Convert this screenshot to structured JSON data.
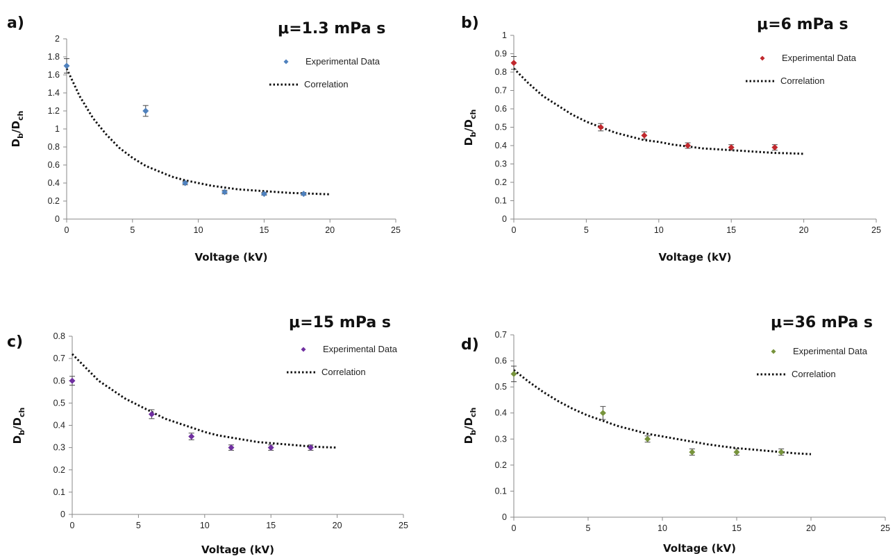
{
  "chart_data": [
    {
      "type": "scatter",
      "panel": "a)",
      "title": "μ=1.3 mPa s",
      "xlabel": "Voltage (kV)",
      "ylabel_main": "D",
      "ylabel_sub1": "b",
      "ylabel_mid": "/D",
      "ylabel_sub2": "ch",
      "xlim": [
        0,
        25
      ],
      "ylim": [
        0,
        2
      ],
      "xticks": [
        "0",
        "5",
        "10",
        "15",
        "20",
        "25"
      ],
      "yticks": [
        "0",
        "0.2",
        "0.4",
        "0.6",
        "0.8",
        "1",
        "1.2",
        "1.4",
        "1.6",
        "1.8",
        "2"
      ],
      "color": "#4f81bd",
      "series": [
        {
          "name": "Experimental Data",
          "x": [
            0,
            6,
            9,
            12,
            15,
            18
          ],
          "y": [
            1.7,
            1.2,
            0.4,
            0.3,
            0.28,
            0.28
          ],
          "error": [
            0.08,
            0.06,
            0.02,
            0.02,
            0.015,
            0.015
          ]
        },
        {
          "name": "Correlation",
          "x": [
            0,
            1,
            2,
            3,
            4,
            5,
            6,
            7,
            8,
            9,
            10,
            11,
            12,
            13,
            14,
            15,
            16,
            17,
            18,
            19,
            20
          ],
          "y": [
            1.67,
            1.36,
            1.12,
            0.94,
            0.79,
            0.68,
            0.59,
            0.53,
            0.47,
            0.43,
            0.4,
            0.37,
            0.35,
            0.33,
            0.32,
            0.31,
            0.3,
            0.29,
            0.285,
            0.28,
            0.275
          ]
        }
      ]
    },
    {
      "type": "scatter",
      "panel": "b)",
      "title": "μ=6 mPa s",
      "xlabel": "Voltage (kV)",
      "ylabel_main": "D",
      "ylabel_sub1": "b",
      "ylabel_mid": "/D",
      "ylabel_sub2": "ch",
      "xlim": [
        0,
        25
      ],
      "ylim": [
        0,
        1
      ],
      "xticks": [
        "0",
        "5",
        "10",
        "15",
        "20",
        "25"
      ],
      "yticks": [
        "0",
        "0.1",
        "0.2",
        "0.3",
        "0.4",
        "0.5",
        "0.6",
        "0.7",
        "0.8",
        "0.9",
        "1"
      ],
      "color": "#c0282d",
      "series": [
        {
          "name": "Experimental Data",
          "x": [
            0,
            6,
            9,
            12,
            15,
            18
          ],
          "y": [
            0.85,
            0.5,
            0.455,
            0.4,
            0.39,
            0.39
          ],
          "error": [
            0.035,
            0.02,
            0.02,
            0.015,
            0.015,
            0.015
          ]
        },
        {
          "name": "Correlation",
          "x": [
            0,
            1,
            2,
            3,
            4,
            5,
            6,
            7,
            8,
            9,
            10,
            11,
            12,
            13,
            14,
            15,
            16,
            17,
            18,
            19,
            20
          ],
          "y": [
            0.82,
            0.74,
            0.67,
            0.62,
            0.57,
            0.53,
            0.5,
            0.47,
            0.45,
            0.43,
            0.42,
            0.405,
            0.395,
            0.385,
            0.38,
            0.375,
            0.37,
            0.365,
            0.36,
            0.358,
            0.355
          ]
        }
      ]
    },
    {
      "type": "scatter",
      "panel": "c)",
      "title": "μ=15 mPa s",
      "xlabel": "Voltage (kV)",
      "ylabel_main": "D",
      "ylabel_sub1": "b",
      "ylabel_mid": "/D",
      "ylabel_sub2": "ch",
      "xlim": [
        0,
        25
      ],
      "ylim": [
        0,
        0.8
      ],
      "xticks": [
        "0",
        "5",
        "10",
        "15",
        "20",
        "25"
      ],
      "yticks": [
        "0",
        "0.1",
        "0.2",
        "0.3",
        "0.4",
        "0.5",
        "0.6",
        "0.7",
        "0.8"
      ],
      "color": "#7030a0",
      "series": [
        {
          "name": "Experimental Data",
          "x": [
            0,
            6,
            9,
            12,
            15,
            18
          ],
          "y": [
            0.6,
            0.45,
            0.35,
            0.3,
            0.3,
            0.3
          ],
          "error": [
            0.02,
            0.02,
            0.015,
            0.012,
            0.012,
            0.012
          ]
        },
        {
          "name": "Correlation",
          "x": [
            0,
            1,
            2,
            3,
            4,
            5,
            6,
            7,
            8,
            9,
            10,
            11,
            12,
            13,
            14,
            15,
            16,
            17,
            18,
            19,
            20
          ],
          "y": [
            0.72,
            0.66,
            0.6,
            0.56,
            0.52,
            0.49,
            0.46,
            0.43,
            0.41,
            0.39,
            0.37,
            0.355,
            0.345,
            0.335,
            0.325,
            0.32,
            0.315,
            0.31,
            0.305,
            0.302,
            0.3
          ]
        }
      ]
    },
    {
      "type": "scatter",
      "panel": "d)",
      "title": "μ=36 mPa s",
      "xlabel": "Voltage (kV)",
      "ylabel_main": "D",
      "ylabel_sub1": "b",
      "ylabel_mid": "/D",
      "ylabel_sub2": "ch",
      "xlim": [
        0,
        25
      ],
      "ylim": [
        0,
        0.7
      ],
      "xticks": [
        "0",
        "5",
        "10",
        "15",
        "20",
        "25"
      ],
      "yticks": [
        "0",
        "0.1",
        "0.2",
        "0.3",
        "0.4",
        "0.5",
        "0.6",
        "0.7"
      ],
      "color": "#77933c",
      "series": [
        {
          "name": "Experimental Data",
          "x": [
            0,
            6,
            9,
            12,
            15,
            18
          ],
          "y": [
            0.55,
            0.4,
            0.3,
            0.25,
            0.25,
            0.25
          ],
          "error": [
            0.03,
            0.025,
            0.012,
            0.012,
            0.012,
            0.012
          ]
        },
        {
          "name": "Correlation",
          "x": [
            0,
            1,
            2,
            3,
            4,
            5,
            6,
            7,
            8,
            9,
            10,
            11,
            12,
            13,
            14,
            15,
            16,
            17,
            18,
            19,
            20
          ],
          "y": [
            0.565,
            0.52,
            0.48,
            0.445,
            0.415,
            0.39,
            0.37,
            0.35,
            0.335,
            0.32,
            0.31,
            0.3,
            0.29,
            0.28,
            0.272,
            0.265,
            0.26,
            0.255,
            0.25,
            0.245,
            0.242
          ]
        }
      ]
    }
  ]
}
